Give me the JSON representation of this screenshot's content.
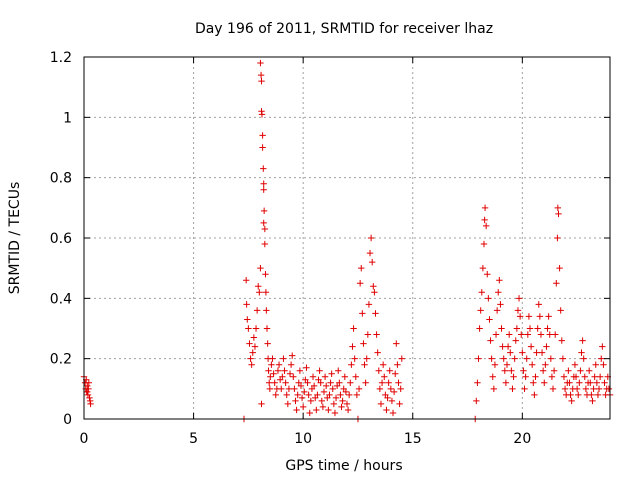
{
  "chart_data": {
    "type": "scatter",
    "title": "Day 196 of 2011, SRMTID for receiver lhaz",
    "xlabel": "GPS time / hours",
    "ylabel": "SRMTID / TECUs",
    "xlim": [
      0,
      24
    ],
    "ylim": [
      0,
      1.2
    ],
    "xticks": [
      0,
      5,
      10,
      15,
      20
    ],
    "xtick_labels": [
      "0",
      "5",
      "10",
      "15",
      "20"
    ],
    "yticks": [
      0,
      0.2,
      0.4,
      0.6,
      0.8,
      1.0,
      1.2
    ],
    "ytick_labels": [
      "0",
      "0.2",
      "0.4",
      "0.6",
      "0.8",
      "1",
      "1.2"
    ],
    "grid": true,
    "marker": "+",
    "color": "#e00000",
    "series": [
      {
        "name": "SRMTID",
        "points": [
          [
            0.0,
            0.14
          ],
          [
            0.05,
            0.12
          ],
          [
            0.08,
            0.1
          ],
          [
            0.1,
            0.13
          ],
          [
            0.12,
            0.09
          ],
          [
            0.15,
            0.11
          ],
          [
            0.18,
            0.08
          ],
          [
            0.2,
            0.1
          ],
          [
            0.22,
            0.12
          ],
          [
            0.25,
            0.07
          ],
          [
            0.28,
            0.06
          ],
          [
            0.3,
            0.05
          ],
          [
            0.15,
            0.09
          ],
          [
            7.3,
            0.0
          ],
          [
            7.4,
            0.46
          ],
          [
            7.42,
            0.38
          ],
          [
            7.45,
            0.33
          ],
          [
            7.5,
            0.3
          ],
          [
            7.55,
            0.25
          ],
          [
            7.6,
            0.2
          ],
          [
            7.65,
            0.18
          ],
          [
            7.7,
            0.22
          ],
          [
            7.75,
            0.27
          ],
          [
            7.8,
            0.24
          ],
          [
            7.85,
            0.3
          ],
          [
            7.9,
            0.36
          ],
          [
            7.95,
            0.44
          ],
          [
            8.0,
            0.42
          ],
          [
            8.05,
            0.5
          ],
          [
            8.05,
            1.18
          ],
          [
            8.08,
            1.14
          ],
          [
            8.1,
            1.12
          ],
          [
            8.1,
            1.02
          ],
          [
            8.12,
            1.01
          ],
          [
            8.15,
            0.94
          ],
          [
            8.15,
            0.9
          ],
          [
            8.18,
            0.83
          ],
          [
            8.2,
            0.78
          ],
          [
            8.2,
            0.76
          ],
          [
            8.22,
            0.69
          ],
          [
            8.2,
            0.65
          ],
          [
            8.25,
            0.63
          ],
          [
            8.25,
            0.58
          ],
          [
            8.28,
            0.48
          ],
          [
            8.3,
            0.42
          ],
          [
            8.32,
            0.36
          ],
          [
            8.35,
            0.3
          ],
          [
            8.38,
            0.25
          ],
          [
            8.4,
            0.2
          ],
          [
            8.42,
            0.16
          ],
          [
            8.45,
            0.12
          ],
          [
            8.48,
            0.1
          ],
          [
            8.5,
            0.14
          ],
          [
            8.55,
            0.18
          ],
          [
            8.6,
            0.2
          ],
          [
            8.65,
            0.15
          ],
          [
            8.7,
            0.12
          ],
          [
            8.75,
            0.08
          ],
          [
            8.8,
            0.1
          ],
          [
            8.85,
            0.16
          ],
          [
            8.9,
            0.18
          ],
          [
            8.95,
            0.13
          ],
          [
            9.0,
            0.1
          ],
          [
            8.1,
            0.05
          ],
          [
            9.05,
            0.14
          ],
          [
            9.1,
            0.2
          ],
          [
            9.15,
            0.16
          ],
          [
            9.2,
            0.12
          ],
          [
            9.25,
            0.08
          ],
          [
            9.3,
            0.05
          ],
          [
            9.35,
            0.1
          ],
          [
            9.4,
            0.15
          ],
          [
            9.45,
            0.18
          ],
          [
            9.5,
            0.21
          ],
          [
            9.55,
            0.14
          ],
          [
            9.6,
            0.1
          ],
          [
            9.65,
            0.06
          ],
          [
            9.7,
            0.03
          ],
          [
            9.75,
            0.08
          ],
          [
            9.8,
            0.12
          ],
          [
            9.85,
            0.16
          ],
          [
            9.9,
            0.11
          ],
          [
            9.95,
            0.07
          ],
          [
            10.0,
            0.04
          ],
          [
            10.05,
            0.09
          ],
          [
            10.1,
            0.13
          ],
          [
            10.15,
            0.17
          ],
          [
            10.2,
            0.12
          ],
          [
            10.25,
            0.08
          ],
          [
            10.3,
            0.02
          ],
          [
            10.35,
            0.06
          ],
          [
            10.4,
            0.1
          ],
          [
            10.45,
            0.14
          ],
          [
            10.5,
            0.11
          ],
          [
            10.55,
            0.07
          ],
          [
            10.6,
            0.03
          ],
          [
            10.65,
            0.08
          ],
          [
            10.7,
            0.13
          ],
          [
            10.75,
            0.16
          ],
          [
            10.8,
            0.12
          ],
          [
            10.85,
            0.06
          ],
          [
            10.9,
            0.04
          ],
          [
            10.95,
            0.09
          ],
          [
            11.0,
            0.14
          ],
          [
            11.05,
            0.11
          ],
          [
            11.1,
            0.07
          ],
          [
            11.15,
            0.03
          ],
          [
            11.2,
            0.08
          ],
          [
            11.25,
            0.12
          ],
          [
            11.3,
            0.15
          ],
          [
            11.35,
            0.1
          ],
          [
            11.4,
            0.05
          ],
          [
            11.45,
            0.02
          ],
          [
            11.5,
            0.07
          ],
          [
            11.55,
            0.11
          ],
          [
            11.6,
            0.16
          ],
          [
            11.65,
            0.12
          ],
          [
            11.7,
            0.08
          ],
          [
            11.75,
            0.04
          ],
          [
            11.8,
            0.06
          ],
          [
            11.85,
            0.1
          ],
          [
            11.9,
            0.14
          ],
          [
            11.95,
            0.09
          ],
          [
            12.0,
            0.05
          ],
          [
            12.05,
            0.03
          ],
          [
            12.1,
            0.08
          ],
          [
            12.15,
            0.12
          ],
          [
            12.2,
            0.18
          ],
          [
            12.25,
            0.24
          ],
          [
            12.3,
            0.3
          ],
          [
            12.35,
            0.2
          ],
          [
            12.4,
            0.14
          ],
          [
            12.45,
            0.08
          ],
          [
            12.5,
            0.0
          ],
          [
            12.55,
            0.1
          ],
          [
            12.6,
            0.45
          ],
          [
            12.65,
            0.5
          ],
          [
            12.7,
            0.35
          ],
          [
            12.75,
            0.25
          ],
          [
            12.8,
            0.18
          ],
          [
            12.85,
            0.12
          ],
          [
            12.9,
            0.2
          ],
          [
            12.95,
            0.28
          ],
          [
            13.0,
            0.38
          ],
          [
            13.05,
            0.55
          ],
          [
            13.1,
            0.6
          ],
          [
            13.15,
            0.52
          ],
          [
            13.2,
            0.44
          ],
          [
            13.25,
            0.42
          ],
          [
            13.3,
            0.35
          ],
          [
            13.35,
            0.28
          ],
          [
            13.4,
            0.22
          ],
          [
            13.45,
            0.16
          ],
          [
            13.5,
            0.1
          ],
          [
            13.55,
            0.05
          ],
          [
            13.6,
            0.12
          ],
          [
            13.65,
            0.18
          ],
          [
            13.7,
            0.14
          ],
          [
            13.75,
            0.08
          ],
          [
            13.8,
            0.03
          ],
          [
            13.85,
            0.07
          ],
          [
            13.9,
            0.12
          ],
          [
            13.95,
            0.16
          ],
          [
            14.0,
            0.1
          ],
          [
            14.05,
            0.06
          ],
          [
            14.1,
            0.02
          ],
          [
            14.15,
            0.09
          ],
          [
            14.2,
            0.15
          ],
          [
            14.25,
            0.25
          ],
          [
            14.3,
            0.18
          ],
          [
            14.35,
            0.12
          ],
          [
            14.4,
            0.05
          ],
          [
            14.45,
            0.1
          ],
          [
            14.5,
            0.2
          ],
          [
            17.85,
            0.0
          ],
          [
            17.9,
            0.06
          ],
          [
            17.95,
            0.12
          ],
          [
            18.0,
            0.2
          ],
          [
            18.05,
            0.3
          ],
          [
            18.1,
            0.36
          ],
          [
            18.15,
            0.42
          ],
          [
            18.2,
            0.5
          ],
          [
            18.25,
            0.58
          ],
          [
            18.28,
            0.66
          ],
          [
            18.3,
            0.7
          ],
          [
            18.35,
            0.64
          ],
          [
            18.4,
            0.48
          ],
          [
            18.45,
            0.4
          ],
          [
            18.5,
            0.33
          ],
          [
            18.55,
            0.26
          ],
          [
            18.6,
            0.2
          ],
          [
            18.65,
            0.14
          ],
          [
            18.7,
            0.1
          ],
          [
            18.75,
            0.18
          ],
          [
            18.8,
            0.28
          ],
          [
            18.85,
            0.36
          ],
          [
            18.9,
            0.42
          ],
          [
            18.95,
            0.46
          ],
          [
            19.0,
            0.38
          ],
          [
            19.05,
            0.3
          ],
          [
            19.1,
            0.24
          ],
          [
            19.15,
            0.2
          ],
          [
            19.2,
            0.16
          ],
          [
            19.25,
            0.12
          ],
          [
            19.3,
            0.18
          ],
          [
            19.35,
            0.24
          ],
          [
            19.4,
            0.28
          ],
          [
            19.45,
            0.22
          ],
          [
            19.5,
            0.16
          ],
          [
            19.55,
            0.1
          ],
          [
            19.6,
            0.14
          ],
          [
            19.65,
            0.2
          ],
          [
            19.7,
            0.26
          ],
          [
            19.75,
            0.3
          ],
          [
            19.8,
            0.36
          ],
          [
            19.85,
            0.4
          ],
          [
            19.9,
            0.34
          ],
          [
            19.95,
            0.28
          ],
          [
            20.0,
            0.22
          ],
          [
            20.05,
            0.16
          ],
          [
            20.1,
            0.1
          ],
          [
            20.15,
            0.14
          ],
          [
            20.2,
            0.2
          ],
          [
            20.25,
            0.28
          ],
          [
            20.3,
            0.34
          ],
          [
            20.35,
            0.3
          ],
          [
            20.4,
            0.24
          ],
          [
            20.45,
            0.18
          ],
          [
            20.5,
            0.12
          ],
          [
            20.55,
            0.08
          ],
          [
            20.6,
            0.14
          ],
          [
            20.65,
            0.22
          ],
          [
            20.7,
            0.3
          ],
          [
            20.75,
            0.38
          ],
          [
            20.8,
            0.34
          ],
          [
            20.85,
            0.28
          ],
          [
            20.9,
            0.22
          ],
          [
            20.95,
            0.16
          ],
          [
            21.0,
            0.12
          ],
          [
            21.05,
            0.18
          ],
          [
            21.1,
            0.24
          ],
          [
            21.15,
            0.3
          ],
          [
            21.2,
            0.34
          ],
          [
            21.25,
            0.28
          ],
          [
            21.3,
            0.2
          ],
          [
            21.35,
            0.14
          ],
          [
            21.4,
            0.1
          ],
          [
            21.45,
            0.16
          ],
          [
            21.5,
            0.28
          ],
          [
            21.55,
            0.45
          ],
          [
            21.6,
            0.6
          ],
          [
            21.62,
            0.7
          ],
          [
            21.65,
            0.68
          ],
          [
            21.7,
            0.5
          ],
          [
            21.75,
            0.36
          ],
          [
            21.8,
            0.26
          ],
          [
            21.85,
            0.2
          ],
          [
            21.9,
            0.14
          ],
          [
            21.95,
            0.1
          ],
          [
            22.0,
            0.08
          ],
          [
            22.05,
            0.12
          ],
          [
            22.1,
            0.16
          ],
          [
            22.15,
            0.12
          ],
          [
            22.2,
            0.08
          ],
          [
            22.25,
            0.06
          ],
          [
            22.3,
            0.1
          ],
          [
            22.35,
            0.14
          ],
          [
            22.4,
            0.18
          ],
          [
            22.45,
            0.14
          ],
          [
            22.5,
            0.1
          ],
          [
            22.55,
            0.08
          ],
          [
            22.6,
            0.12
          ],
          [
            22.65,
            0.16
          ],
          [
            22.7,
            0.22
          ],
          [
            22.75,
            0.26
          ],
          [
            22.8,
            0.2
          ],
          [
            22.85,
            0.14
          ],
          [
            22.9,
            0.1
          ],
          [
            22.95,
            0.08
          ],
          [
            23.0,
            0.12
          ],
          [
            23.05,
            0.16
          ],
          [
            23.1,
            0.12
          ],
          [
            23.15,
            0.08
          ],
          [
            23.2,
            0.06
          ],
          [
            23.25,
            0.1
          ],
          [
            23.3,
            0.14
          ],
          [
            23.35,
            0.18
          ],
          [
            23.4,
            0.12
          ],
          [
            23.45,
            0.08
          ],
          [
            23.5,
            0.1
          ],
          [
            23.55,
            0.14
          ],
          [
            23.6,
            0.2
          ],
          [
            23.65,
            0.24
          ],
          [
            23.7,
            0.18
          ],
          [
            23.75,
            0.12
          ],
          [
            23.8,
            0.08
          ],
          [
            23.85,
            0.1
          ],
          [
            23.9,
            0.14
          ],
          [
            23.95,
            0.1
          ],
          [
            24.0,
            0.08
          ]
        ]
      }
    ]
  }
}
